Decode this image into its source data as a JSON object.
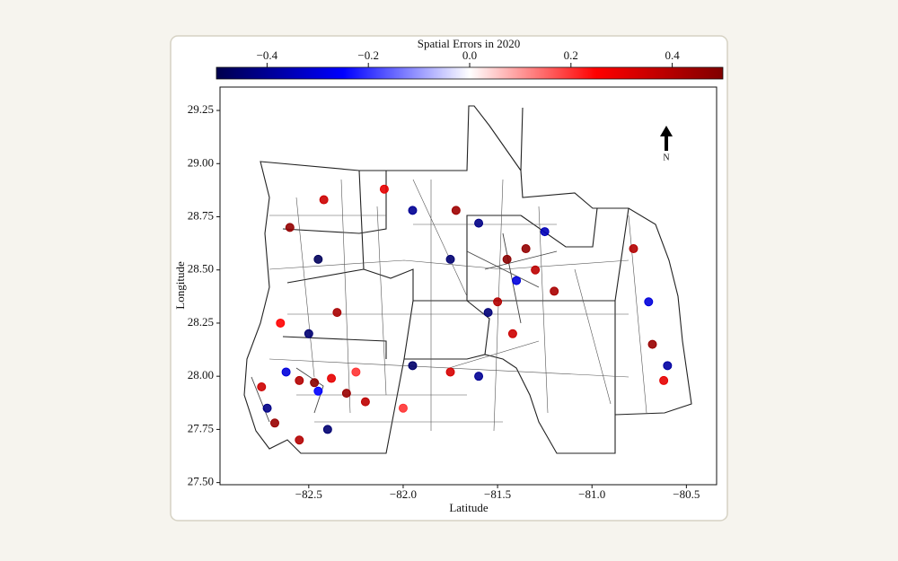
{
  "chart_data": {
    "type": "scatter",
    "colorbar_title": "Spatial Errors in 2020",
    "xlabel": "Latitude",
    "ylabel": "Longitude",
    "north_label": "N",
    "clim": [
      -0.5,
      0.5
    ],
    "cticks": [
      {
        "value": -0.4,
        "label": "−0.4"
      },
      {
        "value": -0.2,
        "label": "−0.2"
      },
      {
        "value": 0,
        "label": "0.0"
      },
      0.2,
      0.4
    ],
    "colormap": [
      "#00004d",
      "#0000ff",
      "#ffffff",
      "#ff0000",
      "#800000"
    ],
    "xlim": [
      -82.97,
      -80.34
    ],
    "ylim": [
      27.49,
      29.36
    ],
    "xticks": [
      {
        "value": -82.5,
        "label": "−82.5"
      },
      {
        "value": -82,
        "label": "−82.0"
      },
      {
        "value": -81.5,
        "label": "−81.5"
      },
      {
        "value": -81,
        "label": "−81.0"
      },
      {
        "value": -80.5,
        "label": "−80.5"
      }
    ],
    "yticks": [
      {
        "value": 27.5,
        "label": "27.50"
      },
      27.75,
      {
        "value": 28,
        "label": "28.00"
      },
      28.25,
      {
        "value": 28.5,
        "label": "28.50"
      },
      28.75,
      {
        "value": 29,
        "label": "29.00"
      },
      29.25
    ],
    "x": [
      -82.75,
      -82.72,
      -82.68,
      -82.62,
      -82.55,
      -82.47,
      -82.45,
      -82.38,
      -82.3,
      -82.25,
      -82.2,
      -82.65,
      -82.5,
      -82.35,
      -82.6,
      -82.42,
      -82.45,
      -82.1,
      -81.95,
      -81.72,
      -81.75,
      -81.6,
      -81.45,
      -81.4,
      -81.35,
      -81.3,
      -81.5,
      -81.25,
      -81.55,
      -81.2,
      -81.95,
      -81.75,
      -81.6,
      -80.78,
      -80.7,
      -80.68,
      -80.6,
      -80.62,
      -82.55,
      -82.4,
      -81.42,
      -82.0
    ],
    "y": [
      27.95,
      27.85,
      27.78,
      28.02,
      27.98,
      27.97,
      27.93,
      27.99,
      27.92,
      28.02,
      27.88,
      28.25,
      28.2,
      28.3,
      28.7,
      28.83,
      28.55,
      28.88,
      28.78,
      28.78,
      28.55,
      28.72,
      28.55,
      28.45,
      28.6,
      28.5,
      28.35,
      28.68,
      28.3,
      28.4,
      28.05,
      28.02,
      28.0,
      28.6,
      28.35,
      28.15,
      28.05,
      27.98,
      27.7,
      27.75,
      28.2,
      27.85
    ],
    "values": [
      0.35,
      -0.42,
      0.45,
      -0.3,
      0.4,
      0.48,
      -0.25,
      0.3,
      0.45,
      0.2,
      0.38,
      0.25,
      -0.45,
      0.42,
      0.46,
      0.35,
      -0.48,
      0.3,
      -0.4,
      0.44,
      -0.45,
      -0.42,
      0.48,
      -0.3,
      0.46,
      0.38,
      0.4,
      -0.35,
      -0.44,
      0.42,
      -0.46,
      0.33,
      -0.4,
      0.4,
      -0.3,
      0.45,
      -0.38,
      0.3,
      0.4,
      -0.45,
      0.35,
      0.2
    ]
  }
}
